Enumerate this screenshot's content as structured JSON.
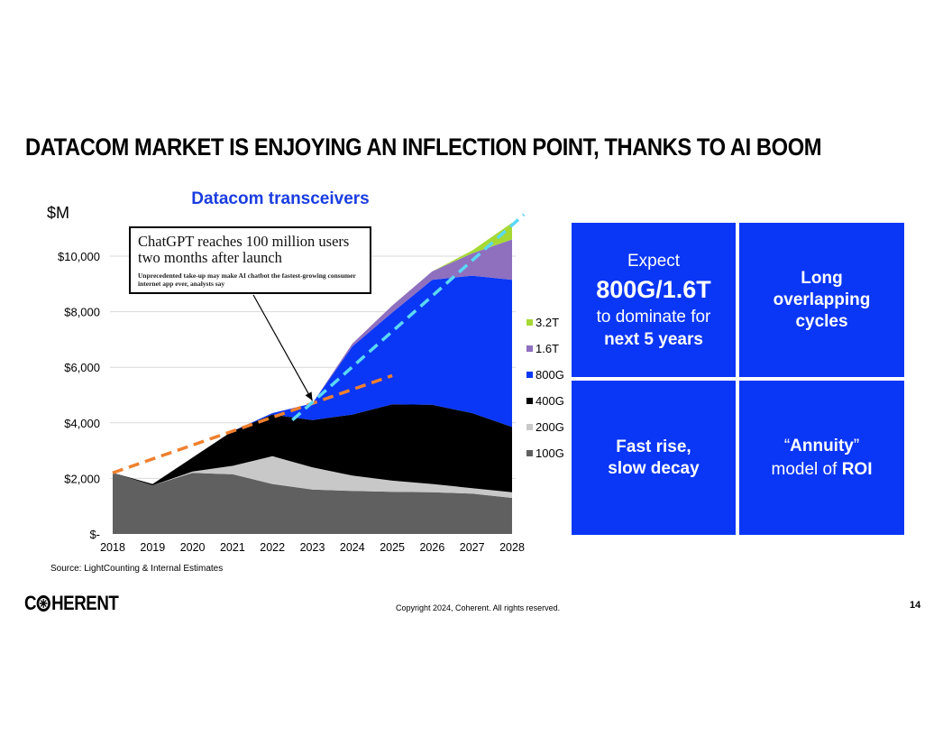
{
  "slide": {
    "title": "DATACOM MARKET IS ENJOYING AN INFLECTION POINT, THANKS TO AI BOOM",
    "source": "Source: LightCounting & Internal Estimates",
    "copyright": "Copyright 2024, Coherent. All rights reserved.",
    "page_number": "14",
    "logo_text_left": "C",
    "logo_text_right": "HERENT"
  },
  "callout": {
    "headline": "ChatGPT reaches 100 million users two months after launch",
    "subhead": "Unprecedented take-up may make AI chatbot the fastest-growing consumer internet app ever, analysts say"
  },
  "panels": {
    "top_left": {
      "line1": "Expect",
      "line2": "800G/1.6T",
      "line3": "to dominate for",
      "line4": "next 5 years"
    },
    "top_right": {
      "line1": "Long",
      "line2": "overlapping",
      "line3": "cycles"
    },
    "bottom_left": {
      "line1": "Fast rise,",
      "line2": "slow decay"
    },
    "bottom_right": {
      "line1_quote_open": "“",
      "line1_word": "Annuity",
      "line1_quote_close": "”",
      "line2_text": "model of ",
      "line2_bold": "ROI"
    }
  },
  "chart_data": {
    "type": "area",
    "stacked": true,
    "title": "Datacom transceivers",
    "ylabel": "$M",
    "xlabel": "",
    "ylim": [
      0,
      11500
    ],
    "x": [
      "2018",
      "2019",
      "2020",
      "2021",
      "2022",
      "2023",
      "2024",
      "2025",
      "2026",
      "2027",
      "2028"
    ],
    "y_ticks": [
      0,
      2000,
      4000,
      6000,
      8000,
      10000
    ],
    "y_tick_labels": [
      "$-",
      "$2,000",
      "$4,000",
      "$6,000",
      "$8,000",
      "$10,000"
    ],
    "grid": true,
    "legend_position": "right",
    "series": [
      {
        "name": "100G",
        "color": "#606060",
        "values": [
          2200,
          1750,
          2200,
          2150,
          1800,
          1600,
          1550,
          1520,
          1500,
          1450,
          1300
        ]
      },
      {
        "name": "200G",
        "color": "#c8c8c8",
        "values": [
          0,
          0,
          50,
          300,
          1000,
          800,
          550,
          400,
          300,
          200,
          200
        ]
      },
      {
        "name": "400G",
        "color": "#000000",
        "values": [
          0,
          50,
          500,
          1250,
          1500,
          1700,
          2200,
          2750,
          2850,
          2700,
          2350
        ]
      },
      {
        "name": "800G",
        "color": "#0a36f5",
        "values": [
          0,
          0,
          0,
          0,
          50,
          600,
          2450,
          3300,
          4500,
          4950,
          5300
        ]
      },
      {
        "name": "1.6T",
        "color": "#8e70bf",
        "values": [
          0,
          0,
          0,
          0,
          0,
          0,
          100,
          250,
          300,
          800,
          1450
        ]
      },
      {
        "name": "3.2T",
        "color": "#a6d934",
        "values": [
          0,
          0,
          0,
          0,
          0,
          0,
          0,
          0,
          0,
          100,
          600
        ]
      }
    ],
    "legend_order": [
      "3.2T",
      "1.6T",
      "800G",
      "400G",
      "200G",
      "100G"
    ],
    "trend_lines": [
      {
        "color": "#f0802f",
        "from": {
          "x": 2018,
          "y": 2200
        },
        "to": {
          "x": 2025,
          "y": 5700
        }
      },
      {
        "color": "#5ad8f5",
        "from": {
          "x": 2022.5,
          "y": 4100
        },
        "to": {
          "x": 2028.3,
          "y": 11500
        }
      }
    ],
    "callout_target": {
      "x": 2023,
      "y": 4800
    }
  }
}
